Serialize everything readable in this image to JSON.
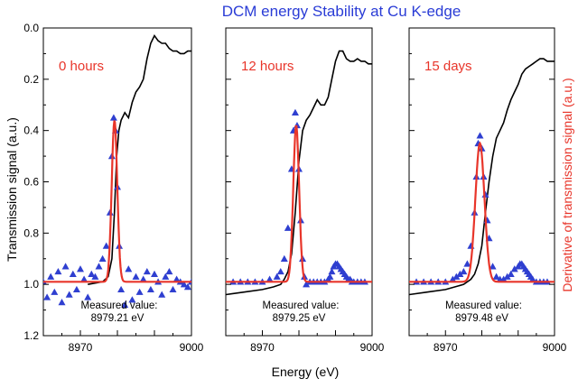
{
  "chart_data": {
    "type": "line",
    "title": "DCM energy Stability at Cu K-edge",
    "xlabel": "Energy (eV)",
    "ylabel_left": "Transmission signal (a.u.)",
    "ylabel_right": "Derivative of transmission signal (a.u.)",
    "xlim": [
      8960,
      9000
    ],
    "x_ticks": [
      "8970",
      "9000"
    ],
    "ylim": [
      1.2,
      0.0
    ],
    "y_ticks": [
      "0.0",
      "0.2",
      "0.4",
      "0.6",
      "0.8",
      "1.0",
      "1.2"
    ],
    "colors": {
      "transmission": "#000000",
      "derivative_points": "#2f3fd0",
      "fit": "#e8352a",
      "title": "#2a3cd6"
    },
    "panels": [
      {
        "label": "0 hours",
        "measured_label": "Measured value:",
        "measured_value": "8979.21 eV",
        "peak_energy": 8979.21,
        "transmission": {
          "x": [
            8972.0,
            8976.0,
            8977.5,
            8978.5,
            8979.2,
            8979.8,
            8980.4,
            8981.0,
            8982.0,
            8983.0,
            8984.0,
            8985.0,
            8986.0,
            8987.0,
            8988.0,
            8989.0,
            8990.0,
            8991.0,
            8992.0,
            8993.0,
            8994.0,
            8995.0,
            8996.0,
            8997.0,
            8998.0,
            8999.0,
            9000.0
          ],
          "y": [
            1.0,
            0.99,
            0.97,
            0.9,
            0.72,
            0.5,
            0.4,
            0.36,
            0.33,
            0.35,
            0.29,
            0.25,
            0.23,
            0.2,
            0.12,
            0.06,
            0.03,
            0.05,
            0.06,
            0.06,
            0.08,
            0.09,
            0.09,
            0.1,
            0.1,
            0.09,
            0.09
          ]
        },
        "derivative_points": {
          "x": [
            8960.0,
            8961.0,
            8962.0,
            8963.0,
            8964.0,
            8965.0,
            8966.0,
            8967.0,
            8968.0,
            8969.0,
            8970.0,
            8971.0,
            8972.0,
            8973.0,
            8974.0,
            8975.0,
            8976.0,
            8977.0,
            8978.0,
            8978.5,
            8979.0,
            8979.5,
            8980.0,
            8980.5,
            8981.0,
            8982.0,
            8983.0,
            8984.0,
            8985.0,
            8986.0,
            8987.0,
            8988.0,
            8989.0,
            8990.0,
            8991.0,
            8992.0,
            8993.0,
            8994.0,
            8995.0,
            8996.0,
            8997.0,
            8998.0,
            8999.0,
            9000.0
          ],
          "y": [
            0.99,
            1.05,
            0.97,
            1.03,
            0.95,
            1.07,
            0.93,
            1.04,
            0.96,
            1.02,
            0.94,
            0.98,
            1.05,
            0.96,
            0.97,
            0.93,
            0.9,
            0.85,
            0.72,
            0.5,
            0.35,
            0.4,
            0.62,
            0.85,
            1.02,
            1.08,
            0.94,
            1.06,
            0.97,
            1.03,
            0.98,
            0.95,
            1.02,
            0.96,
            0.99,
            1.04,
            0.97,
            0.95,
            1.02,
            0.98,
            0.99,
            1.0,
            1.01,
            0.99
          ]
        },
        "fit": {
          "center": 8979.21,
          "sigma": 0.75,
          "baseline": 0.99,
          "peak": 0.36
        }
      },
      {
        "label": "12 hours",
        "measured_label": "Measured value:",
        "measured_value": "8979.25 eV",
        "peak_energy": 8979.25,
        "transmission": {
          "x": [
            8960.0,
            8965.0,
            8970.0,
            8973.0,
            8975.0,
            8976.0,
            8977.0,
            8978.0,
            8979.0,
            8980.0,
            8981.0,
            8982.0,
            8983.0,
            8984.0,
            8985.0,
            8986.0,
            8987.0,
            8988.0,
            8989.0,
            8990.0,
            8991.0,
            8992.0,
            8993.0,
            8994.0,
            8995.0,
            8996.0,
            8997.0,
            8998.0,
            8999.0,
            9000.0
          ],
          "y": [
            1.04,
            1.03,
            1.02,
            1.01,
            1.0,
            0.98,
            0.95,
            0.88,
            0.72,
            0.52,
            0.4,
            0.36,
            0.34,
            0.31,
            0.28,
            0.3,
            0.3,
            0.27,
            0.2,
            0.13,
            0.09,
            0.09,
            0.12,
            0.13,
            0.13,
            0.12,
            0.13,
            0.13,
            0.14,
            0.14
          ]
        },
        "derivative_points": {
          "x": [
            8962.0,
            8964.0,
            8966.0,
            8968.0,
            8970.0,
            8972.0,
            8974.0,
            8975.0,
            8976.0,
            8977.0,
            8978.0,
            8978.5,
            8979.0,
            8979.5,
            8980.0,
            8980.5,
            8981.0,
            8981.5,
            8982.0,
            8983.0,
            8984.0,
            8985.0,
            8986.0,
            8987.0,
            8988.0,
            8988.5,
            8989.0,
            8989.5,
            8990.0,
            8990.5,
            8991.0,
            8991.5,
            8992.0,
            8992.5,
            8993.0,
            8993.5,
            8994.0,
            8994.5,
            8995.0,
            8996.0,
            8997.0,
            8998.0
          ],
          "y": [
            0.99,
            0.99,
            0.99,
            0.99,
            0.99,
            0.98,
            0.97,
            0.95,
            0.9,
            0.78,
            0.55,
            0.4,
            0.33,
            0.38,
            0.55,
            0.75,
            0.9,
            0.97,
            1.0,
            0.99,
            0.99,
            0.99,
            0.99,
            0.99,
            0.98,
            0.97,
            0.95,
            0.93,
            0.92,
            0.92,
            0.93,
            0.94,
            0.95,
            0.96,
            0.97,
            0.98,
            0.98,
            0.99,
            0.99,
            0.99,
            0.99,
            0.99
          ]
        },
        "fit": {
          "center": 8979.25,
          "sigma": 0.8,
          "baseline": 0.99,
          "peak": 0.38
        }
      },
      {
        "label": "15 days",
        "measured_label": "Measured value:",
        "measured_value": "8979.48 eV",
        "peak_energy": 8979.48,
        "transmission": {
          "x": [
            8960.0,
            8965.0,
            8970.0,
            8975.0,
            8977.0,
            8978.0,
            8979.0,
            8980.0,
            8981.0,
            8982.0,
            8983.0,
            8984.0,
            8985.0,
            8986.0,
            8987.0,
            8988.0,
            8989.0,
            8990.0,
            8991.0,
            8992.0,
            8993.0,
            8994.0,
            8995.0,
            8996.0,
            8997.0,
            8998.0,
            8999.0,
            9000.0
          ],
          "y": [
            1.04,
            1.03,
            1.02,
            1.0,
            0.98,
            0.96,
            0.92,
            0.85,
            0.72,
            0.6,
            0.5,
            0.43,
            0.4,
            0.37,
            0.32,
            0.28,
            0.25,
            0.22,
            0.18,
            0.16,
            0.15,
            0.14,
            0.13,
            0.12,
            0.12,
            0.13,
            0.13,
            0.13
          ]
        },
        "derivative_points": {
          "x": [
            8962.0,
            8964.0,
            8966.0,
            8968.0,
            8970.0,
            8972.0,
            8973.0,
            8974.0,
            8975.0,
            8976.0,
            8977.0,
            8978.0,
            8978.5,
            8979.0,
            8979.5,
            8980.0,
            8980.5,
            8981.0,
            8981.5,
            8982.0,
            8983.0,
            8984.0,
            8985.0,
            8986.0,
            8987.0,
            8988.0,
            8989.0,
            8990.0,
            8990.5,
            8991.0,
            8991.5,
            8992.0,
            8992.5,
            8993.0,
            8993.5,
            8994.0,
            8995.0,
            8996.0,
            8997.0,
            8998.0
          ],
          "y": [
            0.99,
            0.99,
            0.99,
            0.99,
            0.99,
            0.98,
            0.97,
            0.96,
            0.95,
            0.92,
            0.85,
            0.72,
            0.58,
            0.45,
            0.42,
            0.47,
            0.58,
            0.65,
            0.75,
            0.82,
            0.93,
            0.97,
            0.98,
            0.98,
            0.97,
            0.96,
            0.94,
            0.93,
            0.92,
            0.92,
            0.93,
            0.94,
            0.95,
            0.96,
            0.97,
            0.98,
            0.99,
            0.99,
            0.99,
            0.99
          ]
        },
        "fit": {
          "center": 8979.48,
          "sigma": 1.25,
          "baseline": 0.99,
          "peak": 0.45
        }
      }
    ]
  }
}
